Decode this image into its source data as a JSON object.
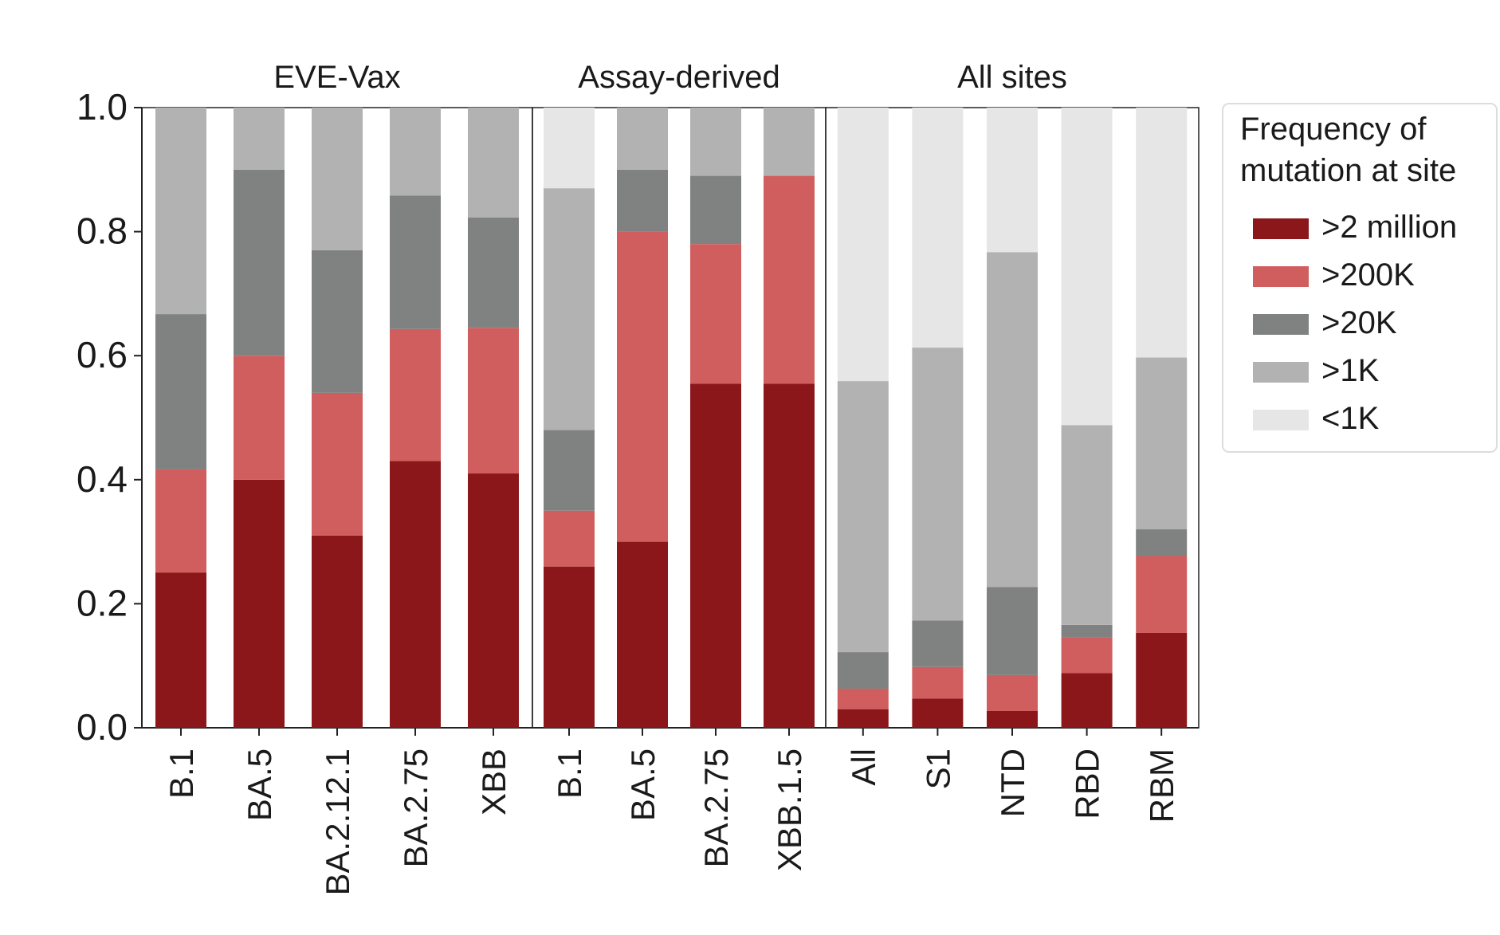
{
  "chart_data": {
    "type": "bar",
    "stacked": true,
    "ylim": [
      0,
      1.0
    ],
    "yticks": [
      "0.0",
      "0.2",
      "0.4",
      "0.6",
      "0.8",
      "1.0"
    ],
    "groups": [
      {
        "title": "EVE-Vax",
        "categories": [
          "B.1",
          "BA.5",
          "BA.2.12.1",
          "BA.2.75",
          "XBB"
        ]
      },
      {
        "title": "Assay-derived",
        "categories": [
          "B.1",
          "BA.5",
          "BA.2.75",
          "XBB.1.5"
        ]
      },
      {
        "title": "All sites",
        "categories": [
          "All",
          "S1",
          "NTD",
          "RBD",
          "RBM"
        ]
      }
    ],
    "series": [
      {
        "name": ">2 million",
        "color": "#8b171b",
        "values": [
          0.25,
          0.4,
          0.31,
          0.43,
          0.41,
          0.26,
          0.3,
          0.555,
          0.555,
          0.03,
          0.047,
          0.027,
          0.088,
          0.153
        ]
      },
      {
        "name": ">200K",
        "color": "#d05e5e",
        "values": [
          0.167,
          0.2,
          0.23,
          0.213,
          0.235,
          0.09,
          0.5,
          0.225,
          0.335,
          0.033,
          0.051,
          0.058,
          0.058,
          0.124
        ]
      },
      {
        "name": ">20K",
        "color": "#808281",
        "values": [
          0.25,
          0.3,
          0.23,
          0.215,
          0.178,
          0.13,
          0.1,
          0.11,
          0.0,
          0.059,
          0.075,
          0.142,
          0.02,
          0.043
        ]
      },
      {
        "name": ">1K",
        "color": "#b2b2b2",
        "values": [
          0.333,
          0.1,
          0.23,
          0.142,
          0.177,
          0.39,
          0.1,
          0.11,
          0.11,
          0.437,
          0.44,
          0.54,
          0.322,
          0.277
        ]
      },
      {
        "name": "<1K",
        "color": "#e6e6e6",
        "values": [
          0.0,
          0.0,
          0.0,
          0.0,
          0.0,
          0.13,
          0.0,
          0.0,
          0.0,
          0.441,
          0.387,
          0.233,
          0.512,
          0.403
        ]
      }
    ],
    "legend": {
      "title_lines": [
        "Frequency of",
        "mutation at site"
      ],
      "position": "right"
    }
  }
}
